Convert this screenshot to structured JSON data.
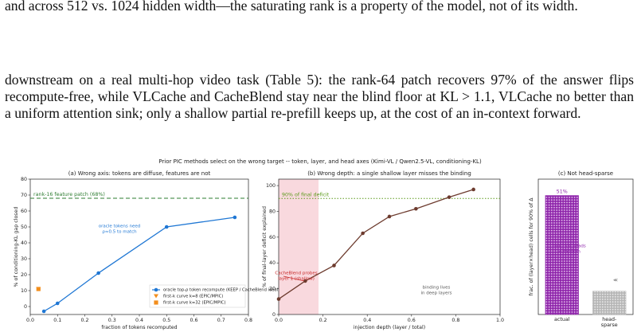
{
  "paragraphs": [
    "and across 512 vs. 1024 hidden width—the saturating rank is a property of the model, not of its width.",
    "downstream on a real multi-hop video task (Table 5): the rank-64 patch recovers 97% of the answer flips recompute-free, while VLCache and CacheBlend stay near the blind floor at KL > 1.1, VLCache no better than a uniform attention sink; only a shallow partial re-prefill keeps up, at the cost of an in-context forward."
  ],
  "figure_title": "Prior PIC methods select on the wrong target -- token, layer, and head axes  (Kimi-VL / Qwen2.5-VL, conditioning-KL)",
  "chart_data": [
    {
      "type": "line",
      "title": "(a) Wrong axis: tokens are diffuse, features are not",
      "xlabel": "fraction of tokens recomputed",
      "ylabel": "% of conditioning-KL gap closed",
      "series": [
        {
          "name": "oracle top-ρ token recompute (KEEP / CacheBlend ideal)",
          "color": "#1f77d4",
          "marker": "circle",
          "line": true,
          "x": [
            0.05,
            0.1,
            0.25,
            0.5,
            0.75
          ],
          "values": [
            -3,
            2,
            21,
            50,
            56
          ]
        },
        {
          "name": "first-k curve k=8 (EPIC/MPIC)",
          "color": "#f28e1c",
          "marker": "triangle",
          "line": false,
          "x": [
            0.03
          ],
          "values": [
            11
          ]
        },
        {
          "name": "first-k curve k=32 (EPIC/MPIC)",
          "color": "#f28e1c",
          "marker": "square",
          "line": false,
          "x": [
            0.03
          ],
          "values": [
            11
          ]
        }
      ],
      "xlim": [
        0,
        0.8
      ],
      "xticks": [
        {
          "value": 0,
          "label": "0.0"
        },
        0.1,
        0.2,
        0.3,
        0.4,
        0.5,
        0.6,
        0.7,
        0.8
      ],
      "ylim": [
        -5,
        80
      ],
      "yticks": [
        0,
        10,
        20,
        30,
        40,
        50,
        60,
        70,
        80
      ],
      "hlines": [
        {
          "value": 68,
          "label": "rank-16 feature patch (68%)",
          "color": "#2e7d32",
          "dash": "5,3"
        }
      ],
      "annotations": [
        "oracle tokens need",
        "ρ≈0.5 to match"
      ]
    },
    {
      "type": "line",
      "title": "(b) Wrong depth: a single shallow layer misses the binding",
      "xlabel": "injection depth (layer / total)",
      "ylabel": "% of final-layer deficit explained",
      "series": [
        {
          "color": "#6d3b2e",
          "marker": "circle",
          "line": true,
          "x": [
            0,
            0.12,
            0.25,
            0.38,
            0.5,
            0.62,
            0.77,
            0.88
          ],
          "values": [
            12,
            26,
            38,
            63,
            76,
            82,
            91,
            97
          ]
        }
      ],
      "xlim": [
        0,
        1
      ],
      "xticks": [
        {
          "value": 0,
          "label": "0.0"
        },
        0.2,
        0.4,
        0.6,
        0.8,
        {
          "value": 1,
          "label": "1.0"
        }
      ],
      "ylim": [
        0,
        105
      ],
      "yticks": [
        0,
        20,
        40,
        60,
        80,
        100
      ],
      "span": [
        0,
        0.18
      ],
      "span_color": "#f9d9de",
      "hlines": [
        {
          "value": 90,
          "label": "90% of final deficit",
          "color": "#5a9a1a",
          "dash": "1.5,2"
        }
      ],
      "annotations": [
        "CacheBlend probes",
        "layer 1 (shallow)",
        "binding lives",
        "in deep layers"
      ]
    },
    {
      "type": "bar",
      "title": "(c) Not head-sparse",
      "ylabel": "frac. of (layer×head) cells for 90% of Δ",
      "categories": [
        "actual",
        "head-\nsparse"
      ],
      "values": [
        51,
        10
      ],
      "value_labels": [
        "51%",
        null
      ],
      "colors": [
        "#8e24aa",
        "#b5b5b5"
      ],
      "ylim": [
        0,
        58
      ],
      "annotations": [
        "top-25% heads",
        "≈ random",
        "≪"
      ]
    }
  ]
}
